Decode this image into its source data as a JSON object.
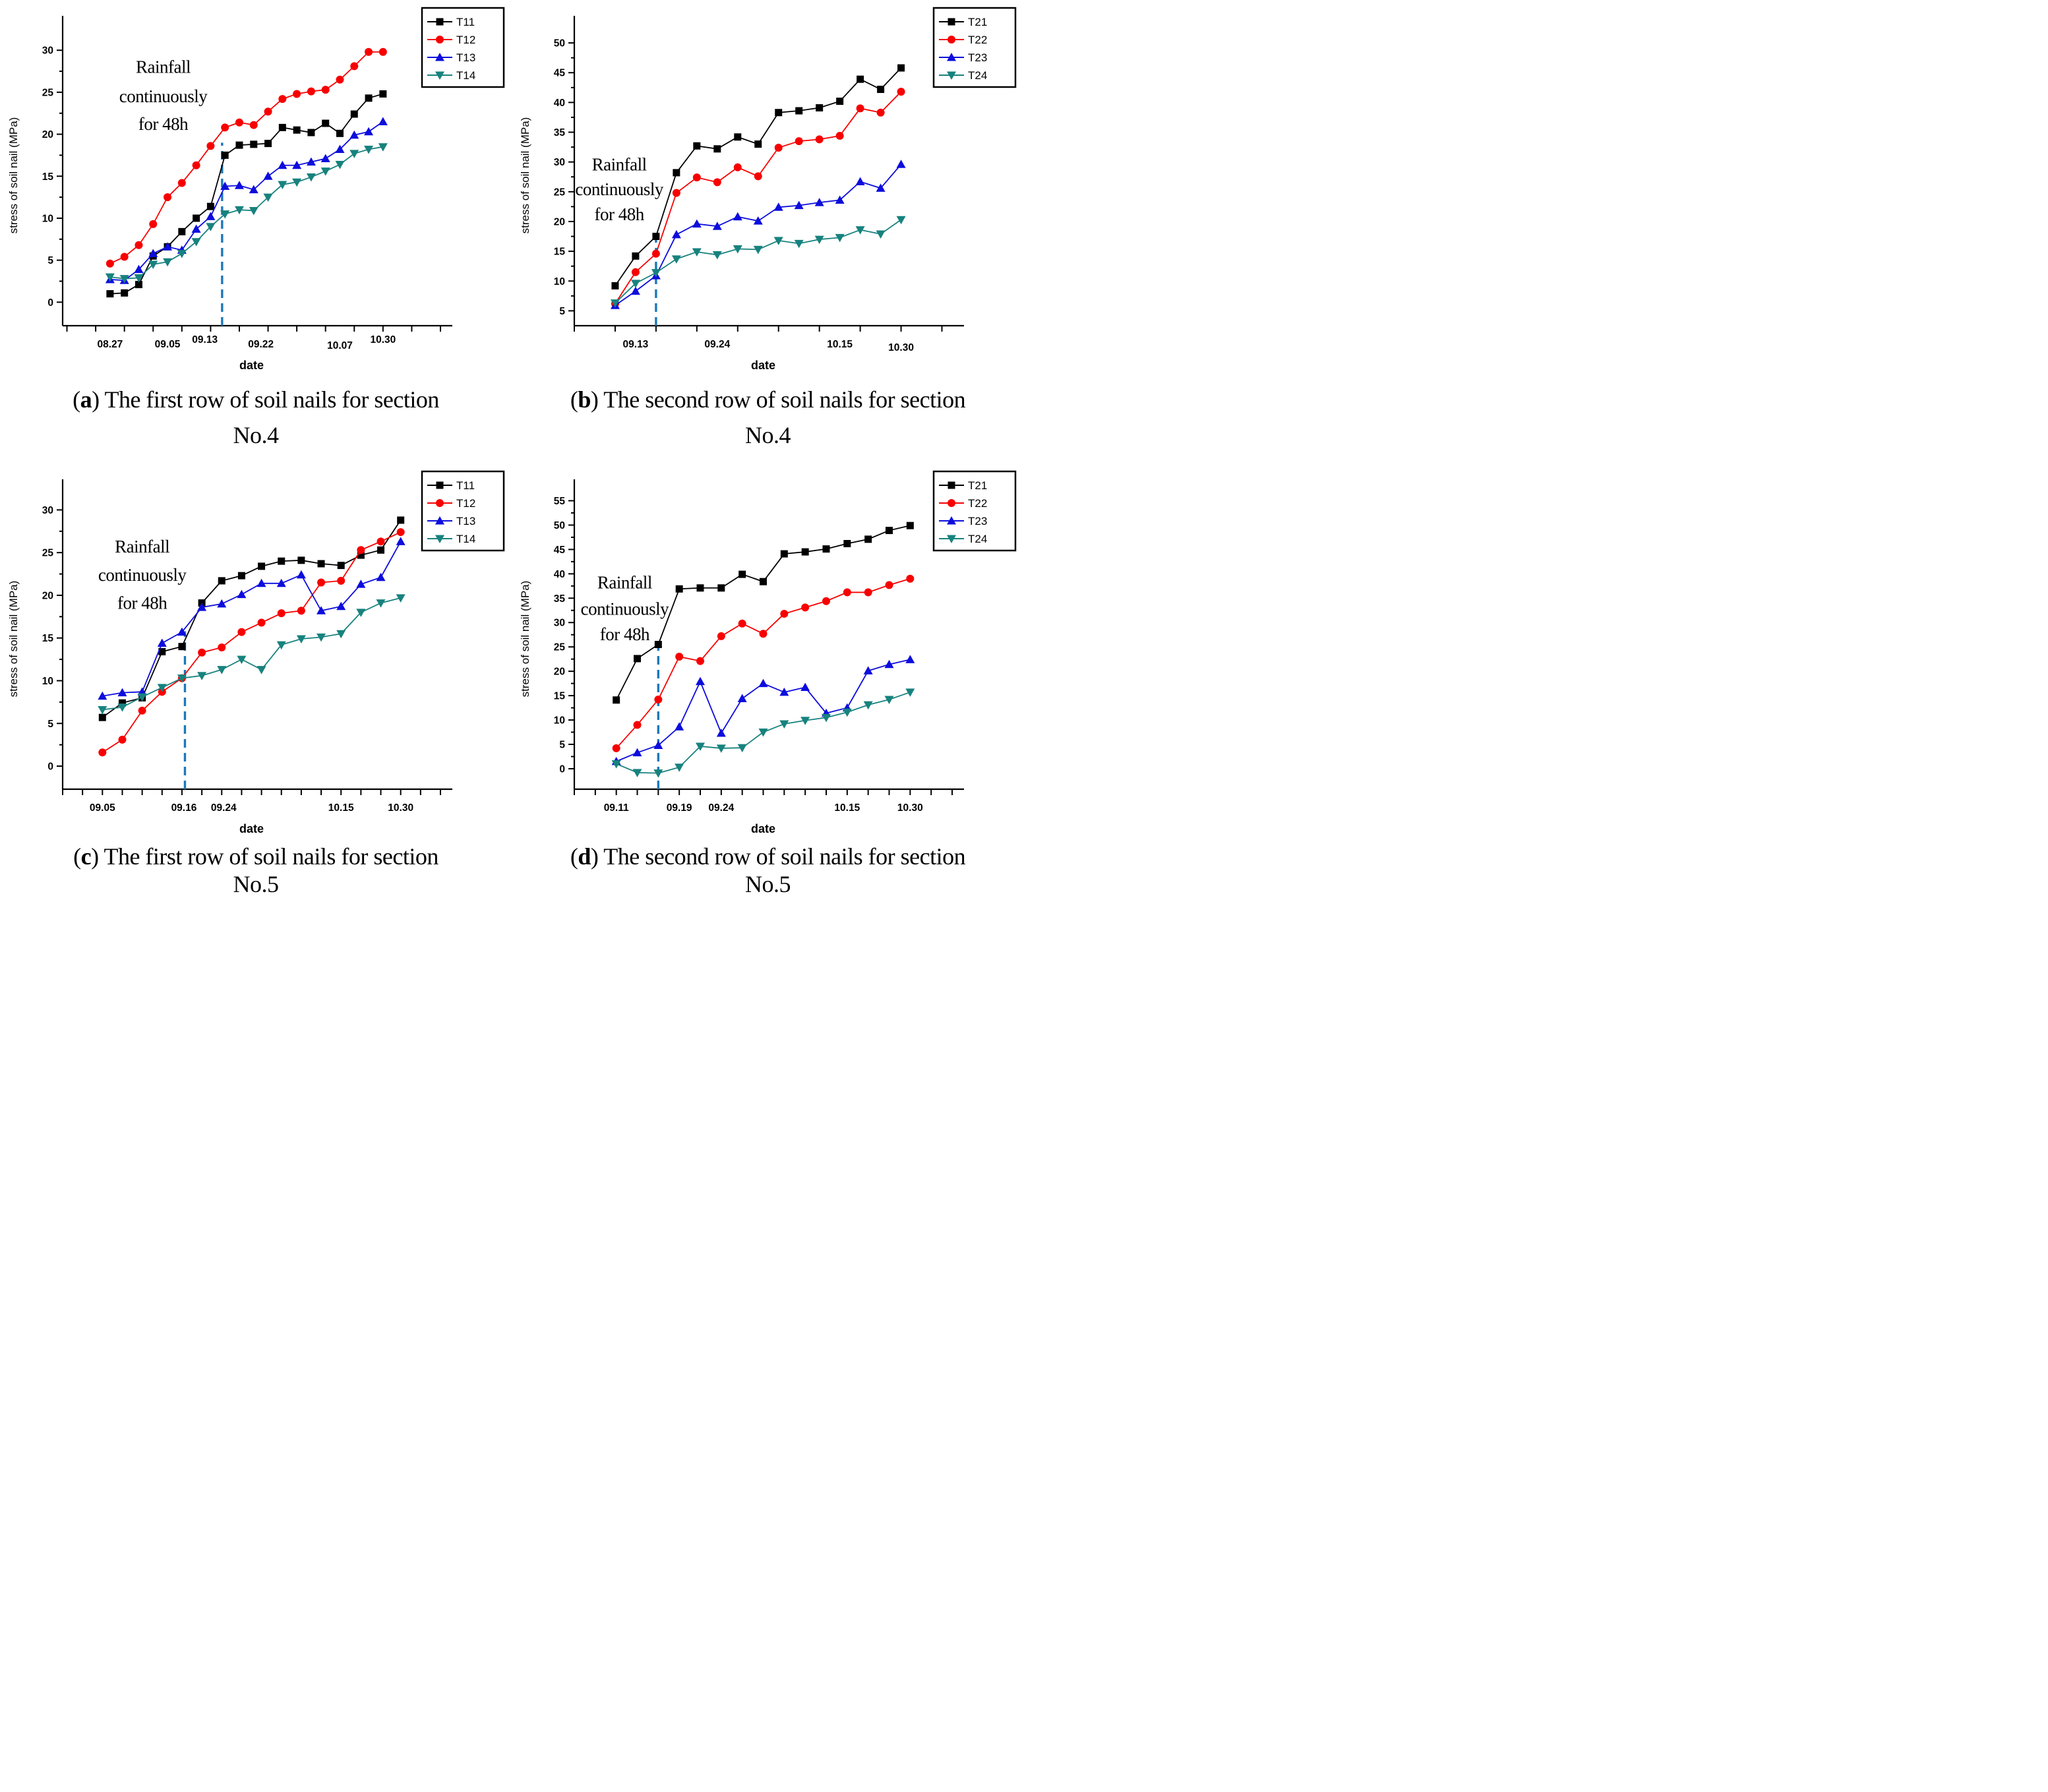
{
  "figure": {
    "background": "#ffffff",
    "dash_color": "#1d78bb",
    "axis_color": "#000000"
  },
  "chart_data": [
    {
      "id": "a",
      "type": "line",
      "xlabel": "date",
      "ylabel": "stress of soil nail (MPa)",
      "ylim": [
        -2.8,
        33.0
      ],
      "yticks": [
        0,
        5,
        10,
        15,
        20,
        25,
        30
      ],
      "xlim": [
        -3.3,
        23.0
      ],
      "xtick_step": 2,
      "xticks": [
        {
          "label": "08.27",
          "at": 0,
          "dy": 0
        },
        {
          "label": "09.05",
          "at": 4,
          "dy": 0
        },
        {
          "label": "09.13",
          "at": 6.6,
          "dy": -7
        },
        {
          "label": "09.22",
          "at": 10.5,
          "dy": 0
        },
        {
          "label": "10.07",
          "at": 16,
          "dy": 2
        },
        {
          "label": "10.30",
          "at": 19,
          "dy": -7
        }
      ],
      "dashed_line": {
        "x": 7.8,
        "y_top": 19.0
      },
      "annotation": {
        "lines": [
          "Rainfall",
          "continuously",
          "for 48h"
        ],
        "x": 3.7,
        "y": [
          27.3,
          23.8,
          20.5
        ]
      },
      "series": [
        {
          "name": "T11",
          "color": "#000000",
          "marker": "square",
          "values": [
            1.0,
            1.1,
            2.1,
            5.5,
            6.6,
            8.4,
            10.0,
            11.4,
            17.5,
            18.7,
            18.8,
            18.9,
            20.8,
            20.5,
            20.2,
            21.3,
            20.1,
            22.4,
            24.3,
            24.8
          ]
        },
        {
          "name": "T12",
          "color": "#f70000",
          "marker": "circle",
          "values": [
            4.6,
            5.4,
            6.8,
            9.3,
            12.5,
            14.2,
            16.3,
            18.6,
            20.8,
            21.4,
            21.1,
            22.7,
            24.2,
            24.8,
            25.1,
            25.3,
            26.5,
            28.1,
            29.8,
            29.8
          ]
        },
        {
          "name": "T13",
          "color": "#0d0ddd",
          "marker": "triangle-up",
          "values": [
            2.7,
            2.6,
            3.9,
            5.8,
            6.6,
            6.2,
            8.7,
            10.2,
            13.8,
            13.9,
            13.4,
            15.0,
            16.3,
            16.3,
            16.7,
            17.1,
            18.2,
            19.9,
            20.3,
            21.5
          ]
        },
        {
          "name": "T14",
          "color": "#17827e",
          "marker": "triangle-down",
          "values": [
            3.0,
            2.8,
            2.9,
            4.5,
            4.8,
            5.8,
            7.2,
            9.0,
            10.5,
            11.0,
            10.9,
            12.5,
            14.0,
            14.3,
            14.9,
            15.6,
            16.4,
            17.7,
            18.2,
            18.5
          ]
        }
      ],
      "caption": {
        "open": "(",
        "letter": "a",
        "rest": ") The first row of soil nails for section",
        "line2": "No.4"
      }
    },
    {
      "id": "b",
      "type": "line",
      "xlabel": "date",
      "ylabel": "stress of soil nail (MPa)",
      "ylim": [
        2.5,
        53.0
      ],
      "yticks": [
        5,
        10,
        15,
        20,
        25,
        30,
        35,
        40,
        45,
        50
      ],
      "xlim": [
        -2.0,
        16.5
      ],
      "xtick_step": 2,
      "xticks": [
        {
          "label": "09.13",
          "at": 1,
          "dy": 0
        },
        {
          "label": "09.24",
          "at": 5,
          "dy": 0
        },
        {
          "label": "10.15",
          "at": 11,
          "dy": 0
        },
        {
          "label": "10.30",
          "at": 14,
          "dy": 5
        }
      ],
      "dashed_line": {
        "x": 2,
        "y_top": 17.6
      },
      "annotation": {
        "lines": [
          "Rainfall",
          "continuously",
          "for 48h"
        ],
        "x": 0.2,
        "y": [
          28.6,
          24.4,
          20.2
        ]
      },
      "series": [
        {
          "name": "T21",
          "color": "#000000",
          "marker": "square",
          "values": [
            9.2,
            14.2,
            17.5,
            28.2,
            32.7,
            32.2,
            34.2,
            33.0,
            38.3,
            38.6,
            39.1,
            40.2,
            43.9,
            42.2,
            45.8
          ]
        },
        {
          "name": "T22",
          "color": "#f70000",
          "marker": "circle",
          "values": [
            6.2,
            11.5,
            14.6,
            24.8,
            27.4,
            26.6,
            29.1,
            27.6,
            32.4,
            33.5,
            33.8,
            34.4,
            39.0,
            38.3,
            41.8
          ]
        },
        {
          "name": "T23",
          "color": "#0d0ddd",
          "marker": "triangle-up",
          "values": [
            5.9,
            8.3,
            10.9,
            17.8,
            19.6,
            19.2,
            20.8,
            20.1,
            22.4,
            22.7,
            23.2,
            23.6,
            26.7,
            25.6,
            29.6
          ]
        },
        {
          "name": "T24",
          "color": "#17827e",
          "marker": "triangle-down",
          "values": [
            6.3,
            9.6,
            11.4,
            13.7,
            14.9,
            14.4,
            15.4,
            15.3,
            16.8,
            16.3,
            17.0,
            17.3,
            18.6,
            17.9,
            20.3
          ]
        }
      ],
      "caption": {
        "open": "(",
        "letter": "b",
        "rest": ") The second row of soil nails for section",
        "line2": "No.4"
      }
    },
    {
      "id": "c",
      "type": "line",
      "xlabel": "date",
      "ylabel": "stress of soil nail (MPa)",
      "ylim": [
        -2.7,
        32.5
      ],
      "yticks": [
        0,
        5,
        10,
        15,
        20,
        25,
        30
      ],
      "xlim": [
        -2.0,
        17.0
      ],
      "xtick_step": 1,
      "xticks": [
        {
          "label": "09.05",
          "at": 0,
          "dy": 0
        },
        {
          "label": "09.16",
          "at": 4.1,
          "dy": 0
        },
        {
          "label": "09.24",
          "at": 6.1,
          "dy": 0
        },
        {
          "label": "10.15",
          "at": 12,
          "dy": 0
        },
        {
          "label": "10.30",
          "at": 15,
          "dy": 0
        }
      ],
      "dashed_line": {
        "x": 4.15,
        "y_top": 15.8
      },
      "annotation": {
        "lines": [
          "Rainfall",
          "continuously",
          "for 48h"
        ],
        "x": 2.0,
        "y": [
          25.0,
          21.7,
          18.4
        ]
      },
      "series": [
        {
          "name": "T11",
          "color": "#000000",
          "marker": "square",
          "values": [
            5.7,
            7.4,
            8.0,
            13.4,
            14.0,
            19.1,
            21.7,
            22.3,
            23.4,
            24.0,
            24.1,
            23.7,
            23.5,
            24.7,
            25.3,
            28.8
          ]
        },
        {
          "name": "T12",
          "color": "#f70000",
          "marker": "circle",
          "values": [
            1.6,
            3.1,
            6.5,
            8.7,
            10.3,
            13.3,
            13.9,
            15.7,
            16.8,
            17.9,
            18.2,
            21.5,
            21.7,
            25.3,
            26.3,
            27.4
          ]
        },
        {
          "name": "T13",
          "color": "#0d0ddd",
          "marker": "triangle-up",
          "values": [
            8.2,
            8.6,
            8.7,
            14.4,
            15.7,
            18.6,
            19.0,
            20.1,
            21.4,
            21.4,
            22.4,
            18.2,
            18.7,
            21.3,
            22.1,
            26.3
          ]
        },
        {
          "name": "T14",
          "color": "#17827e",
          "marker": "triangle-down",
          "values": [
            6.6,
            6.9,
            8.1,
            9.2,
            10.3,
            10.6,
            11.3,
            12.5,
            11.3,
            14.2,
            14.9,
            15.1,
            15.5,
            18.0,
            19.1,
            19.7
          ]
        }
      ],
      "caption": {
        "open": "(",
        "letter": "c",
        "rest": ") The first row of soil nails for section",
        "line2": "No.5"
      }
    },
    {
      "id": "d",
      "type": "line",
      "xlabel": "date",
      "ylabel": "stress of soil nail (MPa)",
      "ylim": [
        -4.2,
        57.5
      ],
      "yticks": [
        0,
        5,
        10,
        15,
        20,
        25,
        30,
        35,
        40,
        45,
        50,
        55
      ],
      "xlim": [
        -2.0,
        16.0
      ],
      "xtick_step": 1,
      "xticks": [
        {
          "label": "09.11",
          "at": 0,
          "dy": 0
        },
        {
          "label": "09.19",
          "at": 3,
          "dy": 0
        },
        {
          "label": "09.24",
          "at": 5,
          "dy": 0
        },
        {
          "label": "10.15",
          "at": 11,
          "dy": 0
        },
        {
          "label": "10.30",
          "at": 14,
          "dy": 0
        }
      ],
      "dashed_line": {
        "x": 2,
        "y_top": 25.6
      },
      "annotation": {
        "lines": [
          "Rainfall",
          "continuously",
          "for 48h"
        ],
        "x": 0.4,
        "y": [
          37.0,
          31.6,
          26.4
        ]
      },
      "series": [
        {
          "name": "T21",
          "color": "#000000",
          "marker": "square",
          "values": [
            14.1,
            22.6,
            25.5,
            36.9,
            37.1,
            37.1,
            39.9,
            38.4,
            44.1,
            44.5,
            45.1,
            46.2,
            47.1,
            48.9,
            49.9
          ]
        },
        {
          "name": "T22",
          "color": "#f70000",
          "marker": "circle",
          "values": [
            4.2,
            9.0,
            14.2,
            23.0,
            22.1,
            27.2,
            29.8,
            27.7,
            31.8,
            33.1,
            34.4,
            36.2,
            36.2,
            37.7,
            39.0
          ]
        },
        {
          "name": "T23",
          "color": "#0d0ddd",
          "marker": "triangle-up",
          "values": [
            1.5,
            3.3,
            4.8,
            8.6,
            17.9,
            7.3,
            14.4,
            17.5,
            15.7,
            16.7,
            11.4,
            12.5,
            20.1,
            21.4,
            22.4
          ]
        },
        {
          "name": "T24",
          "color": "#17827e",
          "marker": "triangle-down",
          "values": [
            1.0,
            -0.8,
            -0.9,
            0.3,
            4.6,
            4.2,
            4.3,
            7.5,
            9.2,
            9.9,
            10.5,
            11.6,
            13.1,
            14.2,
            15.7
          ]
        }
      ],
      "caption": {
        "open": "(",
        "letter": "d",
        "rest": ") The second row of soil nails for section",
        "line2": "No.5"
      }
    }
  ]
}
